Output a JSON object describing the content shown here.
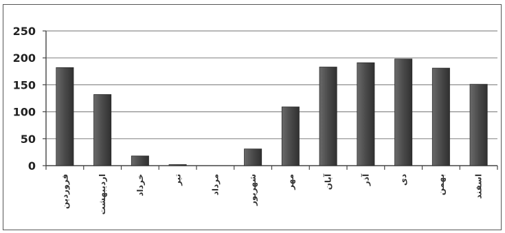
{
  "chart_data": {
    "type": "bar",
    "categories": [
      "فروردین",
      "اردیبهشت",
      "خرداد",
      "تیر",
      "مرداد",
      "شهریور",
      "مهر",
      "آبان",
      "آذر",
      "دی",
      "بهمن",
      "اسفند"
    ],
    "values": [
      182,
      132,
      18,
      2,
      0,
      31,
      109,
      183,
      191,
      198,
      181,
      151
    ],
    "ylim": [
      0,
      250
    ],
    "yticks": [
      0,
      50,
      100,
      150,
      200,
      250
    ],
    "grid": true,
    "legend": "none",
    "bar_color": "#505050",
    "grid_color": "#8c8c8c",
    "title": "",
    "xlabel": "",
    "ylabel": ""
  }
}
